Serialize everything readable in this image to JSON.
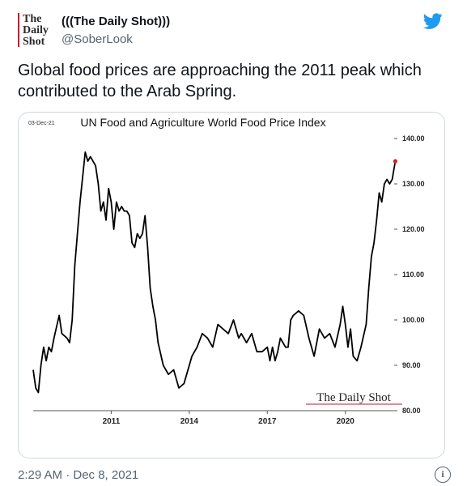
{
  "account": {
    "avatar_text": "The Daily Shot",
    "display_name": "(((The Daily Shot)))",
    "handle": "@SoberLook"
  },
  "tweet": {
    "text": "Global food prices are approaching the 2011 peak which contributed to the Arab Spring.",
    "timestamp": "2:29 AM · Dec 8, 2021"
  },
  "icons": {
    "platform": "twitter-bird-icon",
    "info": "info-icon"
  },
  "colors": {
    "brand": "#1d9bf0",
    "line": "#000000",
    "last_point": "#e0231c",
    "logo_bar": "#c8102e"
  },
  "chart_data": {
    "type": "line",
    "title": "UN Food and Agriculture World Food Price Index",
    "date_stamp": "03-Dec-21",
    "watermark": "The Daily Shot",
    "x_ticks": [
      "2011",
      "2014",
      "2017",
      "2020"
    ],
    "y_ticks": [
      "80.00",
      "90.00",
      "100.00",
      "110.00",
      "120.00",
      "130.00",
      "140.00"
    ],
    "xlim": [
      2008.0,
      2022.0
    ],
    "ylim": [
      80,
      140
    ],
    "y_axis_position": "right",
    "grid": false,
    "series": [
      {
        "x": [
          2008.0,
          2008.1,
          2008.2,
          2008.3,
          2008.4,
          2008.5,
          2008.6,
          2008.7,
          2008.8,
          2009.0,
          2009.1,
          2009.3,
          2009.4,
          2009.5,
          2009.6,
          2009.8,
          2010.0,
          2010.1,
          2010.2,
          2010.4,
          2010.5,
          2010.6,
          2010.7,
          2010.8,
          2010.9,
          2011.0,
          2011.1,
          2011.2,
          2011.3,
          2011.4,
          2011.5,
          2011.6,
          2011.7,
          2011.8,
          2011.9,
          2012.0,
          2012.1,
          2012.2,
          2012.3,
          2012.4,
          2012.5,
          2012.6,
          2012.7,
          2012.8,
          2013.0,
          2013.2,
          2013.4,
          2013.6,
          2013.8,
          2013.9,
          2014.0,
          2014.1,
          2014.3,
          2014.5,
          2014.7,
          2014.9,
          2015.1,
          2015.3,
          2015.5,
          2015.7,
          2015.9,
          2016.0,
          2016.2,
          2016.4,
          2016.6,
          2016.8,
          2017.0,
          2017.1,
          2017.2,
          2017.3,
          2017.4,
          2017.5,
          2017.6,
          2017.7,
          2017.8,
          2017.9,
          2018.0,
          2018.2,
          2018.4,
          2018.6,
          2018.8,
          2019.0,
          2019.2,
          2019.4,
          2019.6,
          2019.8,
          2019.9,
          2020.0,
          2020.1,
          2020.2,
          2020.3,
          2020.45,
          2020.6,
          2020.8,
          2020.9,
          2021.0,
          2021.1,
          2021.2,
          2021.3,
          2021.4,
          2021.5,
          2021.6,
          2021.7,
          2021.8,
          2021.92
        ],
        "values": [
          89,
          85,
          84,
          90,
          94,
          91,
          94,
          93,
          96,
          101,
          97,
          96,
          95,
          100,
          112,
          126,
          137,
          135,
          136,
          134,
          130,
          124,
          126,
          122,
          129,
          126,
          120,
          126,
          124,
          125,
          124,
          124,
          123,
          117,
          116,
          119,
          118,
          119,
          123,
          116,
          107,
          103,
          100,
          95,
          90,
          88,
          89,
          85,
          86,
          88,
          90,
          92,
          94,
          97,
          96,
          94,
          99,
          98,
          97,
          100,
          96,
          97,
          95,
          97,
          93,
          93,
          94,
          91,
          94,
          91,
          93,
          96,
          95,
          94,
          94,
          100,
          101,
          102,
          101,
          96,
          92,
          98,
          96,
          97,
          94,
          99,
          103,
          99,
          94,
          98,
          92,
          91,
          94,
          99,
          107,
          114,
          117,
          122,
          128,
          126,
          130,
          131,
          130,
          131,
          135
        ]
      }
    ]
  }
}
